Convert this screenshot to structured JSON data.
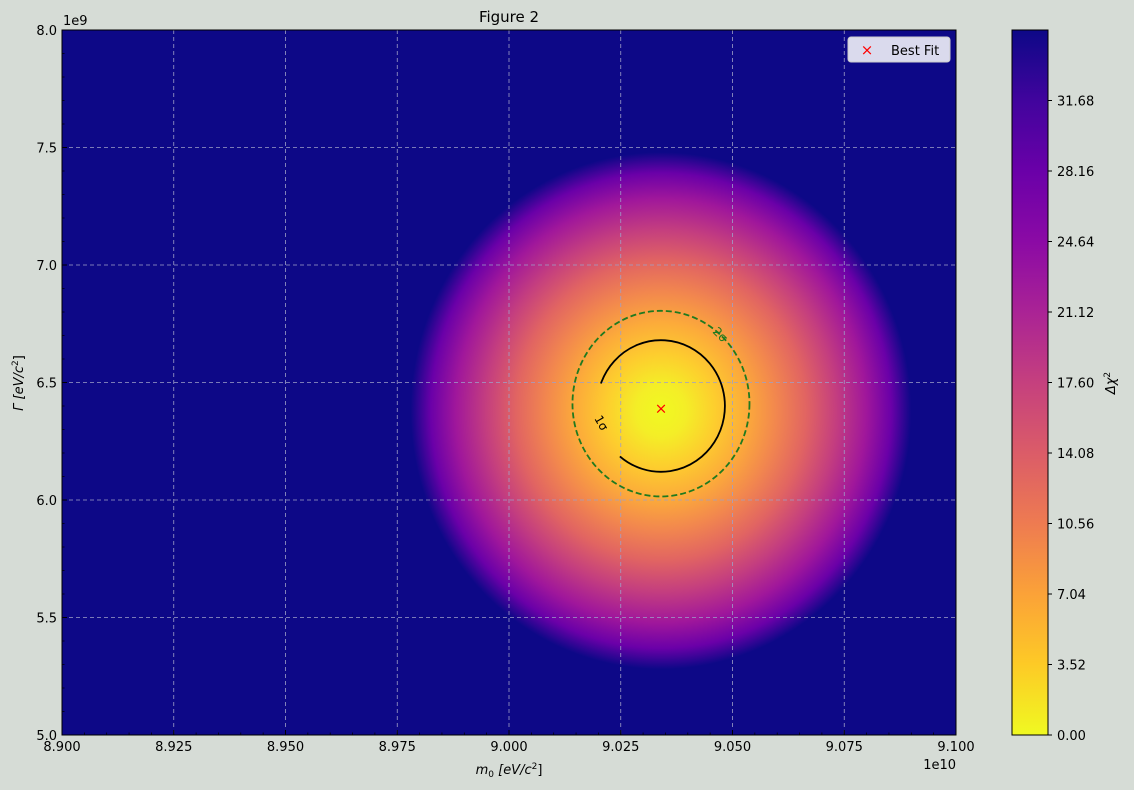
{
  "window": {
    "title": "Figure 2"
  },
  "chart_data": {
    "type": "heatmap",
    "title": "Figure 2",
    "xlabel_main": "m",
    "xlabel_sub": "0",
    "xlabel_units": " [eV/c",
    "xlabel_sup": "2",
    "xlabel_close": "]",
    "ylabel_main": "Γ  [eV/c",
    "ylabel_sup": "2",
    "ylabel_close": "]",
    "x_offset_label": "1e10",
    "y_offset_label": "1e9",
    "xlim": [
      8.9,
      9.1
    ],
    "ylim": [
      5.0,
      8.0
    ],
    "x_ticks": [
      "8.900",
      "8.925",
      "8.950",
      "8.975",
      "9.000",
      "9.025",
      "9.050",
      "9.075",
      "9.100"
    ],
    "x_tick_values": [
      8.9,
      8.925,
      8.95,
      8.975,
      9.0,
      9.025,
      9.05,
      9.075,
      9.1
    ],
    "y_ticks": [
      "5.0",
      "5.5",
      "6.0",
      "6.5",
      "7.0",
      "7.5",
      "8.0"
    ],
    "y_tick_values": [
      5.0,
      5.5,
      6.0,
      6.5,
      7.0,
      7.5,
      8.0
    ],
    "grid": true,
    "colormap": "plasma_r",
    "colorbar_label_main": "Δχ",
    "colorbar_label_sup": "2",
    "colorbar_range": [
      0.0,
      35.2
    ],
    "colorbar_ticks": [
      "0.00",
      "3.52",
      "7.04",
      "10.56",
      "14.08",
      "17.60",
      "21.12",
      "24.64",
      "28.16",
      "31.68"
    ],
    "colorbar_tick_values": [
      0.0,
      3.52,
      7.04,
      10.56,
      14.08,
      17.6,
      21.12,
      24.64,
      28.16,
      31.68
    ],
    "best_fit": {
      "x": 9.034,
      "y": 6.39,
      "marker": "×",
      "color": "#ff0000"
    },
    "contours": [
      {
        "label": "1σ",
        "x_center": 9.034,
        "y_center": 6.4,
        "x_radius": 0.0143,
        "y_radius": 0.28,
        "style": "solid",
        "color": "#000000"
      },
      {
        "label": "2σ",
        "x_center": 9.034,
        "y_center": 6.41,
        "x_radius": 0.0198,
        "y_radius": 0.395,
        "style": "dashed",
        "color": "#1f7a1f"
      }
    ],
    "distribution": {
      "x_center": 9.034,
      "y_center": 6.38,
      "x_radius": 0.056,
      "y_radius": 1.1
    },
    "legend": {
      "placement": "upper-right",
      "entries": [
        {
          "label": "Best Fit",
          "marker": "×",
          "color": "#ff0000"
        }
      ]
    },
    "colors": {
      "background": "#0d0887",
      "figure_bg": "#d6dcd6",
      "grid": "#9fa0c8"
    }
  }
}
